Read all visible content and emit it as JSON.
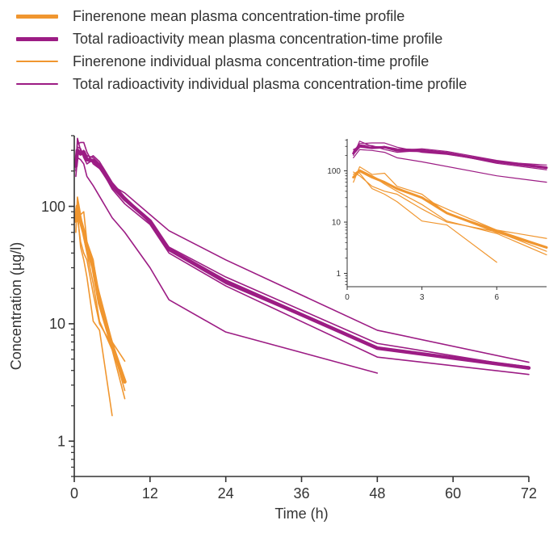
{
  "colors": {
    "finerenone": "#F0962F",
    "radioactivity": "#9C1C84",
    "axis": "#333333"
  },
  "legend": [
    {
      "label": "Finerenone mean plasma concentration-time profile",
      "color": "#F0962F",
      "thick": true
    },
    {
      "label": "Total radioactivity mean plasma concentration-time profile",
      "color": "#9C1C84",
      "thick": true
    },
    {
      "label": "Finerenone individual plasma concentration-time profile",
      "color": "#F0962F",
      "thick": false
    },
    {
      "label": "Total radioactivity individual plasma concentration-time profile",
      "color": "#9C1C84",
      "thick": false
    }
  ],
  "chart_data": [
    {
      "type": "line",
      "xlabel": "Time (h)",
      "ylabel": "Concentration (µg/l)",
      "xlim": [
        0,
        72
      ],
      "ylim": [
        0.5,
        400
      ],
      "yscale": "log",
      "xticks": [
        0,
        12,
        24,
        36,
        48,
        60,
        72
      ],
      "yticks": [
        1,
        10,
        100
      ],
      "series": [
        {
          "group": "finerenone-individual",
          "x": [
            0.25,
            0.5,
            1,
            1.5,
            2,
            3,
            4,
            6,
            8
          ],
          "y": [
            60,
            120,
            85,
            90,
            50,
            35,
            15,
            7,
            4.8
          ]
        },
        {
          "group": "finerenone-individual",
          "x": [
            0.25,
            0.5,
            1,
            1.5,
            2,
            3,
            4,
            6,
            8
          ],
          "y": [
            85,
            105,
            80,
            55,
            40,
            22,
            10.5,
            6,
            2.3
          ]
        },
        {
          "group": "finerenone-individual",
          "x": [
            0.25,
            0.5,
            1,
            1.5,
            2,
            3,
            4,
            6,
            8
          ],
          "y": [
            95,
            80,
            50,
            40,
            35,
            18,
            10,
            6.5,
            2.7
          ]
        },
        {
          "group": "finerenone-individual",
          "x": [
            0.5,
            1,
            1.5,
            2,
            3,
            4,
            6
          ],
          "y": [
            90,
            45,
            35,
            25,
            10.5,
            8.8,
            1.65
          ]
        },
        {
          "group": "finerenone-individual",
          "x": [
            0.25,
            0.5,
            1,
            1.5,
            2,
            3,
            4,
            6,
            8
          ],
          "y": [
            75,
            100,
            80,
            60,
            45,
            30,
            18,
            7,
            3.3
          ]
        },
        {
          "group": "finerenone-mean",
          "x": [
            0.25,
            0.5,
            1,
            1.5,
            2,
            3,
            4,
            6,
            8
          ],
          "y": [
            75,
            100,
            75,
            60,
            45,
            30,
            15,
            6.5,
            3.2
          ]
        },
        {
          "group": "radioactivity-individual",
          "x": [
            0.25,
            0.5,
            1,
            1.5,
            2,
            3,
            4,
            6,
            8,
            12,
            15,
            24,
            48,
            72
          ],
          "y": [
            240,
            340,
            350,
            350,
            290,
            230,
            210,
            150,
            130,
            85,
            62,
            35,
            8.8,
            4.7
          ]
        },
        {
          "group": "radioactivity-individual",
          "x": [
            0.25,
            0.5,
            1,
            1.5,
            2,
            3,
            4,
            6,
            8,
            12,
            15,
            24,
            48,
            72
          ],
          "y": [
            200,
            380,
            300,
            290,
            250,
            270,
            240,
            160,
            120,
            75,
            45,
            25,
            6.8,
            4.2
          ]
        },
        {
          "group": "radioactivity-individual",
          "x": [
            0.25,
            0.5,
            1,
            1.5,
            2,
            3,
            4,
            6,
            8,
            12,
            15,
            24,
            48,
            72
          ],
          "y": [
            260,
            300,
            280,
            300,
            270,
            260,
            230,
            150,
            115,
            72,
            42,
            22,
            6.2,
            4.3
          ]
        },
        {
          "group": "radioactivity-individual",
          "x": [
            0.25,
            0.5,
            1,
            1.5,
            2,
            3,
            4,
            6,
            8,
            12,
            15,
            24,
            48,
            72
          ],
          "y": [
            230,
            320,
            310,
            260,
            230,
            250,
            220,
            140,
            105,
            70,
            40,
            21,
            5.2,
            3.7
          ]
        },
        {
          "group": "radioactivity-individual",
          "x": [
            0.25,
            0.5,
            1,
            1.5,
            2,
            3,
            6,
            8,
            12,
            15,
            24,
            48
          ],
          "y": [
            180,
            260,
            250,
            230,
            180,
            150,
            80,
            60,
            30,
            16,
            8.5,
            3.8
          ]
        },
        {
          "group": "radioactivity-mean",
          "x": [
            0.25,
            0.5,
            1,
            1.5,
            2,
            3,
            4,
            6,
            8,
            12,
            15,
            24,
            48,
            72
          ],
          "y": [
            220,
            300,
            280,
            290,
            250,
            245,
            220,
            150,
            115,
            75,
            43,
            23,
            6.2,
            4.2
          ]
        }
      ]
    },
    {
      "type": "line",
      "inset": true,
      "xlim": [
        0,
        8
      ],
      "ylim": [
        0.55,
        420
      ],
      "yscale": "log",
      "xticks": [
        0,
        3,
        6
      ],
      "yticks": [
        1,
        10,
        100
      ],
      "series": [
        {
          "group": "finerenone-individual",
          "x": [
            0.25,
            0.5,
            1,
            1.5,
            2,
            3,
            4,
            6,
            8
          ],
          "y": [
            60,
            120,
            85,
            90,
            50,
            35,
            15,
            7,
            4.8
          ]
        },
        {
          "group": "finerenone-individual",
          "x": [
            0.25,
            0.5,
            1,
            1.5,
            2,
            3,
            4,
            6,
            8
          ],
          "y": [
            85,
            105,
            80,
            55,
            40,
            22,
            10.5,
            6,
            2.3
          ]
        },
        {
          "group": "finerenone-individual",
          "x": [
            0.25,
            0.5,
            1,
            1.5,
            2,
            3,
            4,
            6,
            8
          ],
          "y": [
            95,
            80,
            50,
            40,
            35,
            18,
            10,
            6.5,
            2.7
          ]
        },
        {
          "group": "finerenone-individual",
          "x": [
            0.5,
            1,
            1.5,
            2,
            3,
            4,
            6
          ],
          "y": [
            90,
            45,
            35,
            25,
            10.5,
            8.8,
            1.65
          ]
        },
        {
          "group": "finerenone-individual",
          "x": [
            0.25,
            0.5,
            1,
            1.5,
            2,
            3,
            4,
            6,
            8
          ],
          "y": [
            75,
            100,
            80,
            60,
            45,
            30,
            18,
            7,
            3.3
          ]
        },
        {
          "group": "finerenone-mean",
          "x": [
            0.25,
            0.5,
            1,
            1.5,
            2,
            3,
            4,
            6,
            8
          ],
          "y": [
            75,
            100,
            75,
            60,
            45,
            30,
            15,
            6.5,
            3.2
          ]
        },
        {
          "group": "radioactivity-individual",
          "x": [
            0.25,
            0.5,
            1,
            1.5,
            2,
            3,
            4,
            6,
            8
          ],
          "y": [
            240,
            340,
            350,
            350,
            290,
            230,
            210,
            150,
            130
          ]
        },
        {
          "group": "radioactivity-individual",
          "x": [
            0.25,
            0.5,
            1,
            1.5,
            2,
            3,
            4,
            6,
            8
          ],
          "y": [
            200,
            380,
            300,
            290,
            250,
            270,
            240,
            160,
            120
          ]
        },
        {
          "group": "radioactivity-individual",
          "x": [
            0.25,
            0.5,
            1,
            1.5,
            2,
            3,
            4,
            6,
            8
          ],
          "y": [
            260,
            300,
            280,
            300,
            270,
            260,
            230,
            150,
            115
          ]
        },
        {
          "group": "radioactivity-individual",
          "x": [
            0.25,
            0.5,
            1,
            1.5,
            2,
            3,
            4,
            6,
            8
          ],
          "y": [
            230,
            320,
            310,
            260,
            230,
            250,
            220,
            140,
            105
          ]
        },
        {
          "group": "radioactivity-individual",
          "x": [
            0.25,
            0.5,
            1,
            1.5,
            2,
            3,
            6,
            8
          ],
          "y": [
            180,
            260,
            250,
            230,
            180,
            150,
            80,
            60
          ]
        },
        {
          "group": "radioactivity-mean",
          "x": [
            0.25,
            0.5,
            1,
            1.5,
            2,
            3,
            4,
            6,
            8
          ],
          "y": [
            220,
            300,
            280,
            290,
            250,
            245,
            220,
            150,
            115
          ]
        }
      ]
    }
  ]
}
